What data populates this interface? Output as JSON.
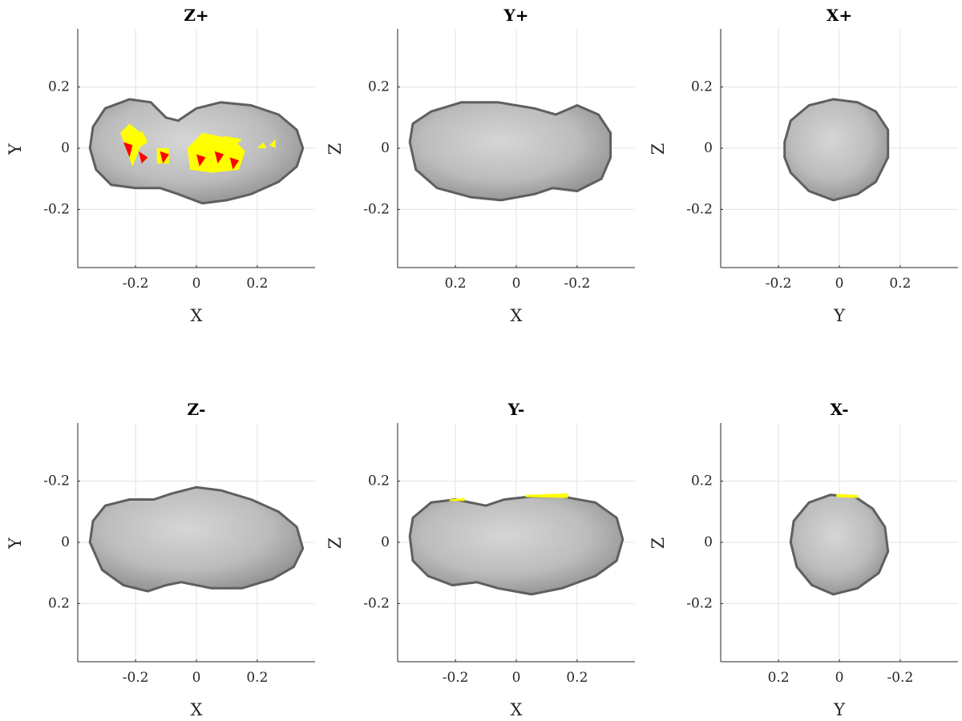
{
  "colors": {
    "body": "#b9b9b9",
    "body_edge": "#5f5f5f",
    "highlight_yellow": "#ffff00",
    "highlight_red": "#ff0000"
  },
  "chart_data": [
    {
      "title": "Z+",
      "type": "scatter",
      "xlabel": "X",
      "ylabel": "Y",
      "xlim": [
        -0.39,
        0.39
      ],
      "ylim": [
        -0.39,
        0.39
      ],
      "x_reversed": false,
      "y_reversed": false,
      "xticks": [
        -0.2,
        0,
        0.2
      ],
      "xtick_labels": [
        "-0.2",
        "0",
        "0.2"
      ],
      "yticks": [
        0.2,
        0,
        -0.2
      ],
      "ytick_labels": [
        "0.2",
        "0",
        "-0.2"
      ],
      "grid": true,
      "shape_outline": [
        [
          -0.35,
          0.0
        ],
        [
          -0.34,
          0.07
        ],
        [
          -0.3,
          0.13
        ],
        [
          -0.22,
          0.16
        ],
        [
          -0.15,
          0.15
        ],
        [
          -0.1,
          0.1
        ],
        [
          -0.06,
          0.09
        ],
        [
          0.0,
          0.13
        ],
        [
          0.08,
          0.15
        ],
        [
          0.18,
          0.14
        ],
        [
          0.27,
          0.11
        ],
        [
          0.33,
          0.06
        ],
        [
          0.35,
          0.0
        ],
        [
          0.33,
          -0.06
        ],
        [
          0.27,
          -0.11
        ],
        [
          0.18,
          -0.15
        ],
        [
          0.1,
          -0.17
        ],
        [
          0.02,
          -0.18
        ],
        [
          -0.06,
          -0.15
        ],
        [
          -0.12,
          -0.13
        ],
        [
          -0.2,
          -0.13
        ],
        [
          -0.28,
          -0.12
        ],
        [
          -0.33,
          -0.07
        ]
      ],
      "surface_highlights": [
        {
          "color": "yellow",
          "points": [
            [
              -0.25,
              0.05
            ],
            [
              -0.21,
              -0.06
            ],
            [
              -0.17,
              0.04
            ],
            [
              -0.22,
              0.08
            ]
          ]
        },
        {
          "color": "yellow",
          "points": [
            [
              -0.18,
              0.06
            ],
            [
              -0.16,
              0.02
            ],
            [
              -0.19,
              0.0
            ]
          ]
        },
        {
          "color": "red",
          "points": [
            [
              -0.24,
              0.02
            ],
            [
              -0.21,
              0.01
            ],
            [
              -0.22,
              -0.03
            ]
          ]
        },
        {
          "color": "red",
          "points": [
            [
              -0.19,
              -0.01
            ],
            [
              -0.16,
              -0.03
            ],
            [
              -0.18,
              -0.05
            ]
          ]
        },
        {
          "color": "yellow",
          "points": [
            [
              -0.13,
              0.0
            ],
            [
              -0.09,
              0.0
            ],
            [
              -0.09,
              -0.05
            ],
            [
              -0.13,
              -0.05
            ]
          ]
        },
        {
          "color": "red",
          "points": [
            [
              -0.12,
              -0.01
            ],
            [
              -0.09,
              -0.02
            ],
            [
              -0.11,
              -0.05
            ]
          ]
        },
        {
          "color": "yellow",
          "points": [
            [
              -0.03,
              0.0
            ],
            [
              0.02,
              0.05
            ],
            [
              0.12,
              0.03
            ],
            [
              0.16,
              -0.01
            ],
            [
              0.14,
              -0.07
            ],
            [
              0.05,
              -0.08
            ],
            [
              -0.02,
              -0.07
            ]
          ]
        },
        {
          "color": "yellow",
          "points": [
            [
              0.09,
              0.04
            ],
            [
              0.12,
              0.0
            ],
            [
              0.15,
              0.03
            ]
          ]
        },
        {
          "color": "red",
          "points": [
            [
              0.0,
              -0.02
            ],
            [
              0.03,
              -0.03
            ],
            [
              0.01,
              -0.06
            ]
          ]
        },
        {
          "color": "red",
          "points": [
            [
              0.06,
              -0.01
            ],
            [
              0.09,
              -0.02
            ],
            [
              0.07,
              -0.05
            ]
          ]
        },
        {
          "color": "red",
          "points": [
            [
              0.11,
              -0.03
            ],
            [
              0.14,
              -0.04
            ],
            [
              0.12,
              -0.07
            ]
          ]
        },
        {
          "color": "yellow",
          "points": [
            [
              0.2,
              0.0
            ],
            [
              0.22,
              0.02
            ],
            [
              0.23,
              0.0
            ]
          ]
        },
        {
          "color": "yellow",
          "points": [
            [
              0.24,
              0.01
            ],
            [
              0.26,
              0.03
            ],
            [
              0.26,
              0.0
            ]
          ]
        }
      ]
    },
    {
      "title": "Y+",
      "type": "scatter",
      "xlabel": "X",
      "ylabel": "Z",
      "xlim": [
        -0.39,
        0.39
      ],
      "ylim": [
        -0.39,
        0.39
      ],
      "x_reversed": true,
      "y_reversed": false,
      "xticks": [
        0.2,
        0,
        -0.2
      ],
      "xtick_labels": [
        "0.2",
        "0",
        "-0.2"
      ],
      "yticks": [
        0.2,
        0,
        -0.2
      ],
      "ytick_labels": [
        "0.2",
        "0",
        "-0.2"
      ],
      "grid": true,
      "shape_outline": [
        [
          0.35,
          0.02
        ],
        [
          0.34,
          0.08
        ],
        [
          0.28,
          0.12
        ],
        [
          0.18,
          0.15
        ],
        [
          0.06,
          0.15
        ],
        [
          -0.06,
          0.13
        ],
        [
          -0.13,
          0.11
        ],
        [
          -0.2,
          0.14
        ],
        [
          -0.27,
          0.11
        ],
        [
          -0.31,
          0.05
        ],
        [
          -0.31,
          -0.03
        ],
        [
          -0.28,
          -0.1
        ],
        [
          -0.2,
          -0.14
        ],
        [
          -0.12,
          -0.13
        ],
        [
          -0.06,
          -0.15
        ],
        [
          0.05,
          -0.17
        ],
        [
          0.15,
          -0.16
        ],
        [
          0.26,
          -0.13
        ],
        [
          0.33,
          -0.07
        ]
      ],
      "surface_highlights": []
    },
    {
      "title": "X+",
      "type": "scatter",
      "xlabel": "Y",
      "ylabel": "Z",
      "xlim": [
        -0.39,
        0.39
      ],
      "ylim": [
        -0.39,
        0.39
      ],
      "x_reversed": false,
      "y_reversed": false,
      "xticks": [
        -0.2,
        0,
        0.2
      ],
      "xtick_labels": [
        "-0.2",
        "0",
        "0.2"
      ],
      "yticks": [
        0.2,
        0,
        -0.2
      ],
      "ytick_labels": [
        "0.2",
        "0",
        "-0.2"
      ],
      "grid": true,
      "shape_outline": [
        [
          -0.18,
          0.02
        ],
        [
          -0.16,
          0.09
        ],
        [
          -0.1,
          0.14
        ],
        [
          -0.02,
          0.16
        ],
        [
          0.06,
          0.15
        ],
        [
          0.12,
          0.12
        ],
        [
          0.16,
          0.06
        ],
        [
          0.16,
          -0.03
        ],
        [
          0.12,
          -0.11
        ],
        [
          0.06,
          -0.15
        ],
        [
          -0.02,
          -0.17
        ],
        [
          -0.1,
          -0.14
        ],
        [
          -0.16,
          -0.08
        ],
        [
          -0.18,
          -0.03
        ]
      ],
      "surface_highlights": []
    },
    {
      "title": "Z-",
      "type": "scatter",
      "xlabel": "X",
      "ylabel": "Y",
      "xlim": [
        -0.39,
        0.39
      ],
      "ylim": [
        -0.39,
        0.39
      ],
      "x_reversed": false,
      "y_reversed": true,
      "xticks": [
        -0.2,
        0,
        0.2
      ],
      "xtick_labels": [
        "-0.2",
        "0",
        "0.2"
      ],
      "yticks": [
        -0.2,
        0,
        0.2
      ],
      "ytick_labels": [
        "-0.2",
        "0",
        "0.2"
      ],
      "grid": true,
      "shape_outline": [
        [
          -0.35,
          0.0
        ],
        [
          -0.34,
          -0.07
        ],
        [
          -0.3,
          -0.12
        ],
        [
          -0.22,
          -0.14
        ],
        [
          -0.14,
          -0.14
        ],
        [
          -0.08,
          -0.16
        ],
        [
          0.0,
          -0.18
        ],
        [
          0.08,
          -0.17
        ],
        [
          0.18,
          -0.14
        ],
        [
          0.27,
          -0.1
        ],
        [
          0.33,
          -0.05
        ],
        [
          0.35,
          0.02
        ],
        [
          0.32,
          0.08
        ],
        [
          0.25,
          0.12
        ],
        [
          0.15,
          0.15
        ],
        [
          0.05,
          0.15
        ],
        [
          -0.05,
          0.13
        ],
        [
          -0.1,
          0.14
        ],
        [
          -0.16,
          0.16
        ],
        [
          -0.24,
          0.14
        ],
        [
          -0.31,
          0.09
        ]
      ],
      "surface_highlights": []
    },
    {
      "title": "Y-",
      "type": "scatter",
      "xlabel": "X",
      "ylabel": "Z",
      "xlim": [
        -0.39,
        0.39
      ],
      "ylim": [
        -0.39,
        0.39
      ],
      "x_reversed": false,
      "y_reversed": false,
      "xticks": [
        -0.2,
        0,
        0.2
      ],
      "xtick_labels": [
        "-0.2",
        "0",
        "0.2"
      ],
      "yticks": [
        0.2,
        0,
        -0.2
      ],
      "ytick_labels": [
        "0.2",
        "0",
        "-0.2"
      ],
      "grid": true,
      "shape_outline": [
        [
          -0.35,
          0.02
        ],
        [
          -0.34,
          0.08
        ],
        [
          -0.28,
          0.13
        ],
        [
          -0.2,
          0.14
        ],
        [
          -0.1,
          0.12
        ],
        [
          -0.04,
          0.14
        ],
        [
          0.05,
          0.15
        ],
        [
          0.15,
          0.15
        ],
        [
          0.26,
          0.13
        ],
        [
          0.33,
          0.08
        ],
        [
          0.35,
          0.01
        ],
        [
          0.33,
          -0.06
        ],
        [
          0.26,
          -0.11
        ],
        [
          0.15,
          -0.15
        ],
        [
          0.05,
          -0.17
        ],
        [
          -0.06,
          -0.15
        ],
        [
          -0.13,
          -0.13
        ],
        [
          -0.21,
          -0.14
        ],
        [
          -0.29,
          -0.11
        ],
        [
          -0.34,
          -0.06
        ]
      ],
      "surface_highlights": [
        {
          "color": "yellow",
          "points": [
            [
              -0.22,
              0.14
            ],
            [
              -0.17,
              0.145
            ],
            [
              -0.17,
              0.135
            ],
            [
              -0.22,
              0.135
            ]
          ]
        },
        {
          "color": "yellow",
          "points": [
            [
              0.03,
              0.155
            ],
            [
              0.17,
              0.16
            ],
            [
              0.17,
              0.145
            ],
            [
              0.03,
              0.148
            ]
          ]
        }
      ]
    },
    {
      "title": "X-",
      "type": "scatter",
      "xlabel": "Y",
      "ylabel": "Z",
      "xlim": [
        -0.39,
        0.39
      ],
      "ylim": [
        -0.39,
        0.39
      ],
      "x_reversed": true,
      "y_reversed": false,
      "xticks": [
        0.2,
        0,
        -0.2
      ],
      "xtick_labels": [
        "0.2",
        "0",
        "-0.2"
      ],
      "yticks": [
        0.2,
        0,
        -0.2
      ],
      "ytick_labels": [
        "0.2",
        "0",
        "-0.2"
      ],
      "grid": true,
      "shape_outline": [
        [
          0.16,
          0.0
        ],
        [
          0.15,
          0.07
        ],
        [
          0.1,
          0.13
        ],
        [
          0.03,
          0.155
        ],
        [
          -0.05,
          0.15
        ],
        [
          -0.11,
          0.11
        ],
        [
          -0.15,
          0.05
        ],
        [
          -0.16,
          -0.03
        ],
        [
          -0.13,
          -0.1
        ],
        [
          -0.06,
          -0.15
        ],
        [
          0.02,
          -0.17
        ],
        [
          0.09,
          -0.14
        ],
        [
          0.14,
          -0.08
        ]
      ],
      "surface_highlights": [
        {
          "color": "yellow",
          "points": [
            [
              0.01,
              0.158
            ],
            [
              -0.06,
              0.155
            ],
            [
              -0.06,
              0.145
            ],
            [
              0.01,
              0.148
            ]
          ]
        }
      ]
    }
  ]
}
